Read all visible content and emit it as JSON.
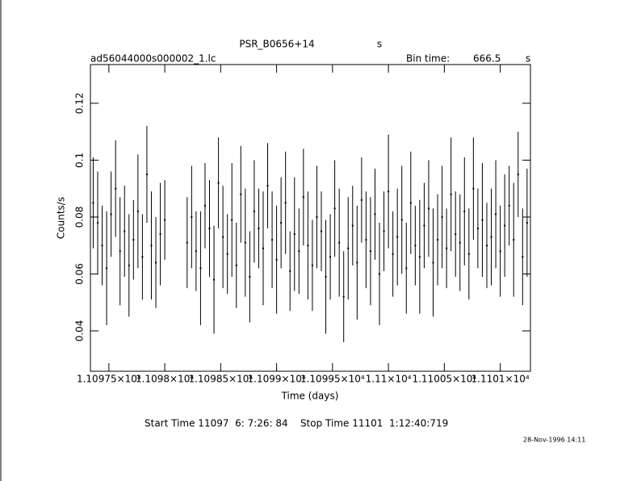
{
  "chart_data": {
    "type": "errorbar",
    "title": "PSR_B0656+14",
    "title_unit": "s",
    "file_name": "ad56044000s000002_1.lc",
    "bin_time_label": "Bin time:",
    "bin_time": 666.5,
    "bin_time_unit": "s",
    "y_label": "Counts/s",
    "x_label": "Time (days)",
    "time_range": "Start Time 11097  6: 7:26: 84    Stop Time 11101  1:12:40:719",
    "footer": "28-Nov-1996 14:11",
    "color": "#000000",
    "xlim": [
      11097.335,
      11101.27
    ],
    "ylim": [
      0.0258,
      0.1336
    ],
    "xticks": [
      {
        "value": 11097.5,
        "label": "1.10975×10⁴"
      },
      {
        "value": 11098,
        "label": "1.1098×10⁴"
      },
      {
        "value": 11098.5,
        "label": "1.10985×10⁴"
      },
      {
        "value": 11099,
        "label": "1.1099×10⁴"
      },
      {
        "value": 11099.5,
        "label": "1.10995×10⁴"
      },
      {
        "value": 11100,
        "label": "1.11×10⁴"
      },
      {
        "value": 11100.5,
        "label": "1.11005×10⁴"
      },
      {
        "value": 11101,
        "label": "1.1101×10⁴"
      }
    ],
    "yticks": [
      0.04,
      0.06,
      0.08,
      0.1,
      0.12
    ],
    "x": [
      11097.36,
      11097.4,
      11097.44,
      11097.48,
      11097.52,
      11097.56,
      11097.6,
      11097.64,
      11097.68,
      11097.72,
      11097.76,
      11097.8,
      11097.84,
      11097.88,
      11097.92,
      11097.96,
      11098.0,
      11098.2,
      11098.24,
      11098.28,
      11098.32,
      11098.36,
      11098.4,
      11098.44,
      11098.48,
      11098.52,
      11098.56,
      11098.6,
      11098.64,
      11098.68,
      11098.72,
      11098.76,
      11098.8,
      11098.84,
      11098.88,
      11098.92,
      11098.96,
      11099.0,
      11099.04,
      11099.08,
      11099.12,
      11099.16,
      11099.2,
      11099.24,
      11099.28,
      11099.32,
      11099.36,
      11099.4,
      11099.44,
      11099.48,
      11099.52,
      11099.56,
      11099.6,
      11099.64,
      11099.68,
      11099.72,
      11099.76,
      11099.8,
      11099.84,
      11099.88,
      11099.92,
      11099.96,
      11100.0,
      11100.04,
      11100.08,
      11100.12,
      11100.16,
      11100.2,
      11100.24,
      11100.28,
      11100.32,
      11100.36,
      11100.4,
      11100.44,
      11100.48,
      11100.52,
      11100.56,
      11100.6,
      11100.64,
      11100.68,
      11100.72,
      11100.76,
      11100.8,
      11100.84,
      11100.88,
      11100.92,
      11100.96,
      11101.0,
      11101.04,
      11101.08,
      11101.12,
      11101.16,
      11101.2,
      11101.24
    ],
    "values": [
      0.085,
      0.078,
      0.07,
      0.062,
      0.081,
      0.09,
      0.068,
      0.075,
      0.063,
      0.072,
      0.082,
      0.066,
      0.095,
      0.07,
      0.064,
      0.074,
      0.079,
      0.071,
      0.08,
      0.068,
      0.062,
      0.084,
      0.076,
      0.058,
      0.092,
      0.073,
      0.067,
      0.079,
      0.063,
      0.088,
      0.071,
      0.059,
      0.082,
      0.076,
      0.069,
      0.091,
      0.072,
      0.065,
      0.078,
      0.085,
      0.061,
      0.074,
      0.068,
      0.087,
      0.07,
      0.063,
      0.08,
      0.075,
      0.059,
      0.066,
      0.083,
      0.071,
      0.052,
      0.069,
      0.077,
      0.064,
      0.086,
      0.072,
      0.068,
      0.081,
      0.06,
      0.075,
      0.089,
      0.067,
      0.073,
      0.079,
      0.062,
      0.085,
      0.07,
      0.066,
      0.077,
      0.083,
      0.064,
      0.072,
      0.08,
      0.069,
      0.088,
      0.074,
      0.071,
      0.082,
      0.067,
      0.09,
      0.076,
      0.079,
      0.07,
      0.073,
      0.081,
      0.068,
      0.077,
      0.084,
      0.072,
      0.095,
      0.066,
      0.078
    ],
    "errors": [
      0.016,
      0.018,
      0.014,
      0.02,
      0.015,
      0.017,
      0.019,
      0.016,
      0.018,
      0.014,
      0.02,
      0.015,
      0.017,
      0.019,
      0.016,
      0.018,
      0.014,
      0.016,
      0.018,
      0.014,
      0.02,
      0.015,
      0.017,
      0.019,
      0.016,
      0.018,
      0.014,
      0.02,
      0.015,
      0.017,
      0.019,
      0.016,
      0.018,
      0.014,
      0.02,
      0.015,
      0.017,
      0.019,
      0.016,
      0.018,
      0.014,
      0.02,
      0.015,
      0.017,
      0.019,
      0.016,
      0.018,
      0.014,
      0.02,
      0.015,
      0.017,
      0.019,
      0.016,
      0.018,
      0.014,
      0.02,
      0.015,
      0.017,
      0.019,
      0.016,
      0.018,
      0.014,
      0.02,
      0.015,
      0.017,
      0.019,
      0.016,
      0.018,
      0.014,
      0.02,
      0.015,
      0.017,
      0.019,
      0.016,
      0.018,
      0.014,
      0.02,
      0.015,
      0.017,
      0.019,
      0.016,
      0.018,
      0.014,
      0.02,
      0.015,
      0.017,
      0.019,
      0.016,
      0.018,
      0.014,
      0.02,
      0.015,
      0.017,
      0.019
    ]
  }
}
